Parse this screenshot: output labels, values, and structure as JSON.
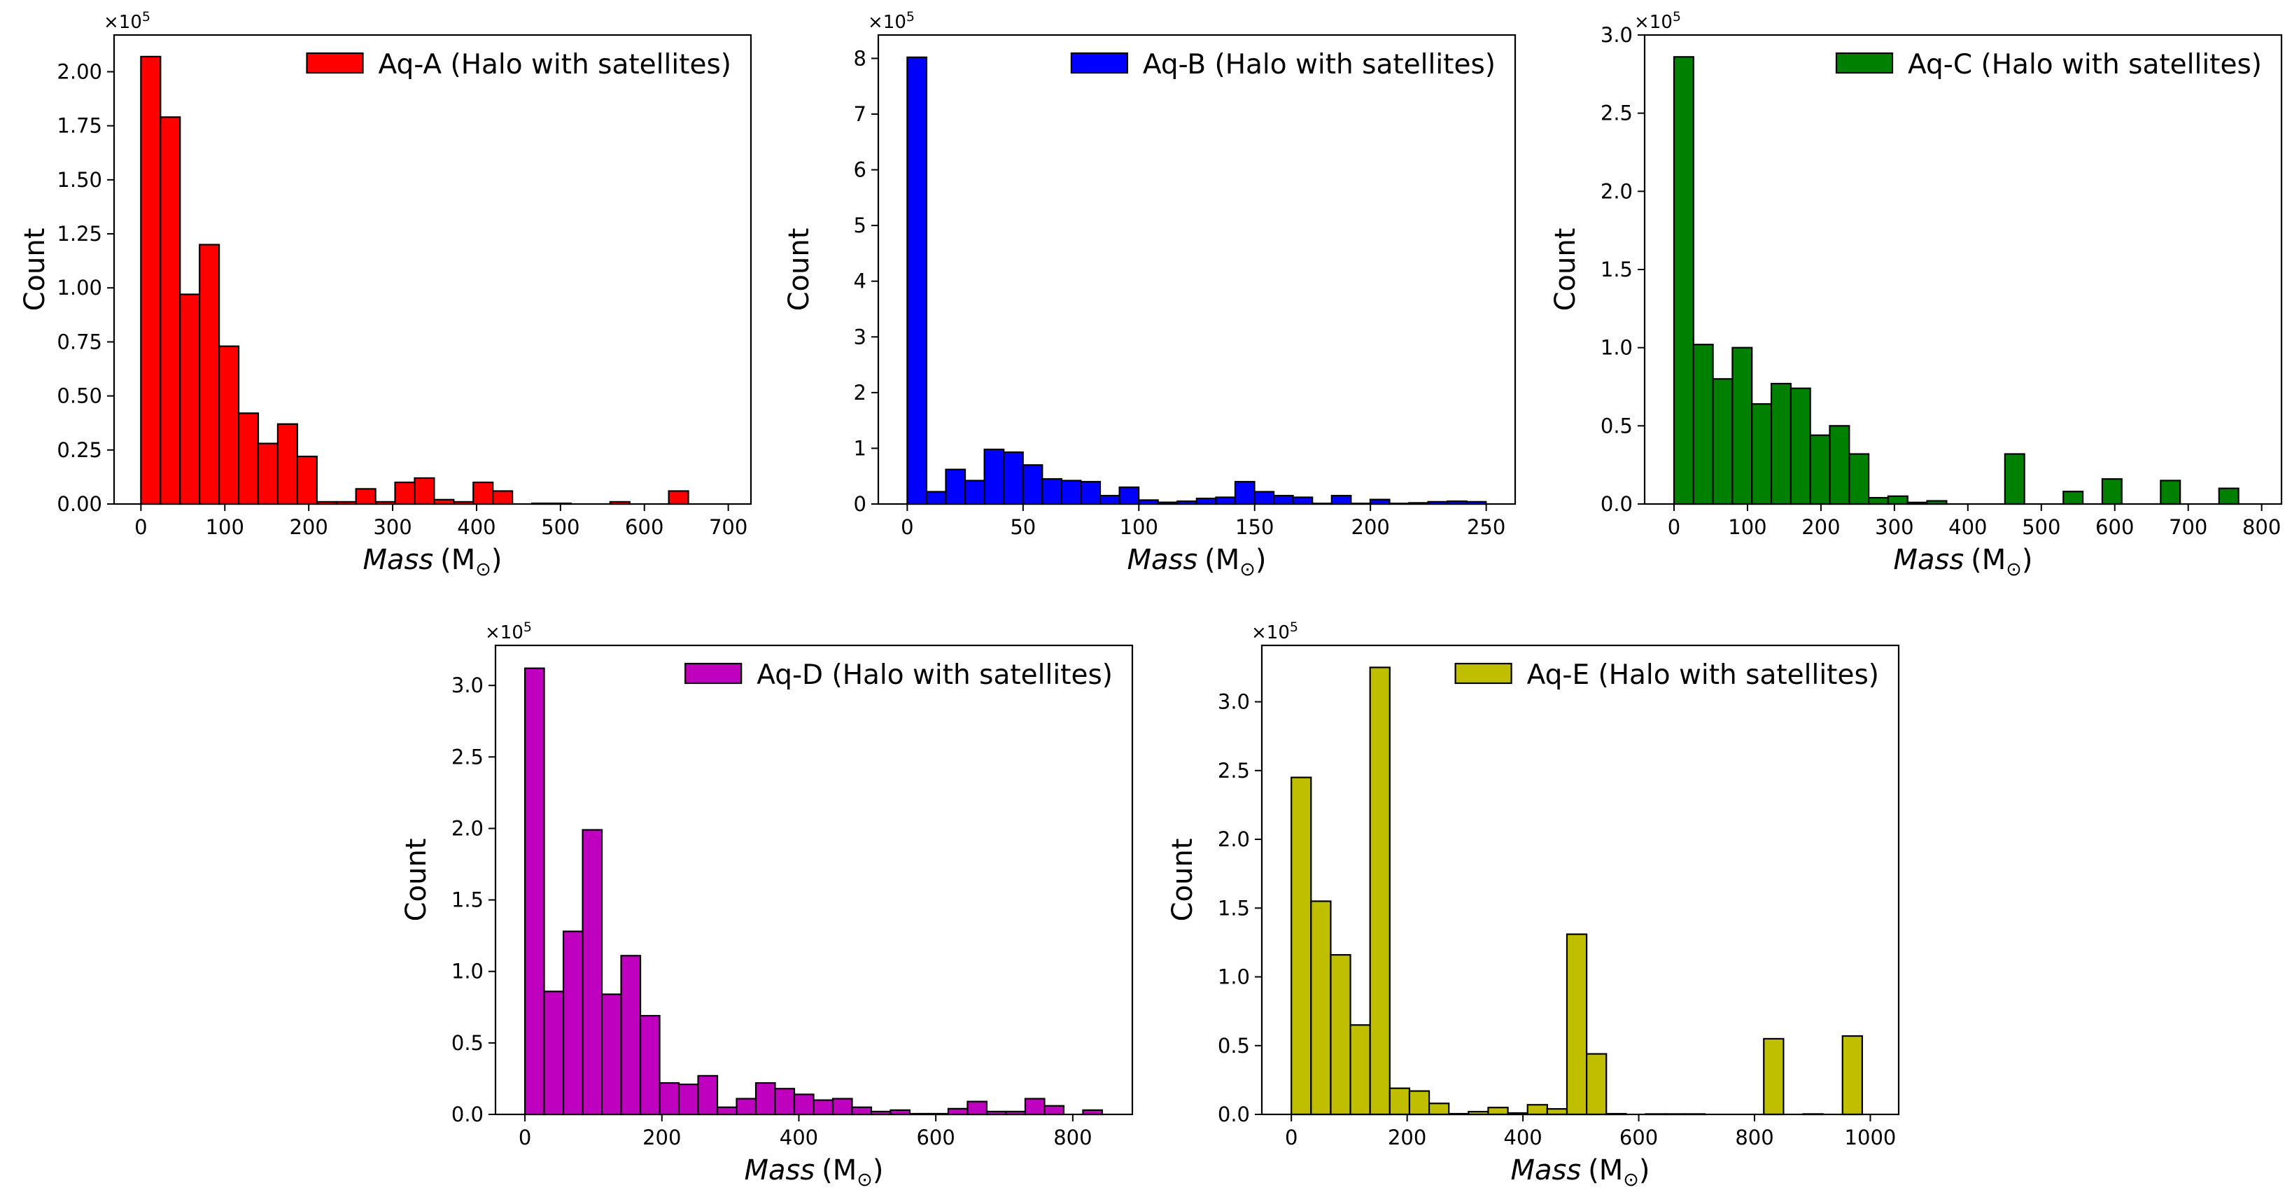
{
  "chart_data": [
    {
      "type": "bar",
      "panel": "Aq-A",
      "title": "",
      "legend": "Aq-A (Halo with satellites)",
      "legend_position": "top-right",
      "color": "#ff0000",
      "xlabel_base": "Mass",
      "xlabel_unit": "(M",
      "xlabel_sub": "⊙",
      "xlabel_close": ")",
      "ylabel": "Count",
      "offset_label": "×10",
      "offset_exp": "5",
      "xlim": [
        -32,
        727
      ],
      "ylim": [
        0,
        2.17
      ],
      "xticks": [
        0,
        100,
        200,
        300,
        400,
        500,
        600,
        700
      ],
      "xtick_labels": [
        "0",
        "100",
        "200",
        "300",
        "400",
        "500",
        "600",
        "700"
      ],
      "yticks": [
        0,
        0.25,
        0.5,
        0.75,
        1.0,
        1.25,
        1.5,
        1.75,
        2.0
      ],
      "ytick_labels": [
        "0.00",
        "0.25",
        "0.50",
        "0.75",
        "1.00",
        "1.25",
        "1.50",
        "1.75",
        "2.00"
      ],
      "bin_start": 0,
      "bin_width": 23.3,
      "values": [
        2.07,
        1.79,
        0.97,
        1.2,
        0.73,
        0.42,
        0.28,
        0.37,
        0.22,
        0.01,
        0.01,
        0.07,
        0.01,
        0.1,
        0.12,
        0.02,
        0.01,
        0.1,
        0.06,
        0.0,
        0.003,
        0.003,
        0.0,
        0.0,
        0.01,
        0.0,
        0.0,
        0.06,
        0.0,
        0.0
      ]
    },
    {
      "type": "bar",
      "panel": "Aq-B",
      "title": "",
      "legend": "Aq-B (Halo with satellites)",
      "legend_position": "top-right",
      "color": "#0000ff",
      "xlabel_base": "Mass",
      "xlabel_unit": "(M",
      "xlabel_sub": "⊙",
      "xlabel_close": ")",
      "ylabel": "Count",
      "offset_label": "×10",
      "offset_exp": "5",
      "xlim": [
        -12.5,
        262.5
      ],
      "ylim": [
        0,
        8.42
      ],
      "xticks": [
        0,
        50,
        100,
        150,
        200,
        250
      ],
      "xtick_labels": [
        "0",
        "50",
        "100",
        "150",
        "200",
        "250"
      ],
      "yticks": [
        0,
        1,
        2,
        3,
        4,
        5,
        6,
        7,
        8
      ],
      "ytick_labels": [
        "0",
        "1",
        "2",
        "3",
        "4",
        "5",
        "6",
        "7",
        "8"
      ],
      "bin_start": 0,
      "bin_width": 8.33,
      "values": [
        8.02,
        0.22,
        0.62,
        0.42,
        0.98,
        0.93,
        0.7,
        0.45,
        0.42,
        0.4,
        0.15,
        0.3,
        0.07,
        0.03,
        0.05,
        0.1,
        0.12,
        0.4,
        0.22,
        0.15,
        0.12,
        0.01,
        0.15,
        0.01,
        0.08,
        0.01,
        0.02,
        0.04,
        0.05,
        0.04
      ]
    },
    {
      "type": "bar",
      "panel": "Aq-C",
      "title": "",
      "legend": "Aq-C (Halo with satellites)",
      "legend_position": "top-right",
      "color": "#008000",
      "xlabel_base": "Mass",
      "xlabel_unit": "(M",
      "xlabel_sub": "⊙",
      "xlabel_close": ")",
      "ylabel": "Count",
      "offset_label": "×10",
      "offset_exp": "5",
      "xlim": [
        -40,
        827
      ],
      "ylim": [
        0,
        3.0
      ],
      "xticks": [
        0,
        100,
        200,
        300,
        400,
        500,
        600,
        700,
        800
      ],
      "xtick_labels": [
        "0",
        "100",
        "200",
        "300",
        "400",
        "500",
        "600",
        "700",
        "800"
      ],
      "yticks": [
        0,
        0.5,
        1.0,
        1.5,
        2.0,
        2.5,
        3.0
      ],
      "ytick_labels": [
        "0.0",
        "0.5",
        "1.0",
        "1.5",
        "2.0",
        "2.5",
        "3.0"
      ],
      "bin_start": 0,
      "bin_width": 26.5,
      "values": [
        2.86,
        1.02,
        0.8,
        1.0,
        0.64,
        0.77,
        0.74,
        0.44,
        0.5,
        0.32,
        0.04,
        0.05,
        0.01,
        0.02,
        0.0,
        0.0,
        0.0,
        0.32,
        0.0,
        0.0,
        0.08,
        0.0,
        0.16,
        0.0,
        0.0,
        0.15,
        0.0,
        0.0,
        0.1,
        0.0
      ]
    },
    {
      "type": "bar",
      "panel": "Aq-D",
      "title": "",
      "legend": "Aq-D (Halo with satellites)",
      "legend_position": "top-right",
      "color": "#bf00bf",
      "xlabel_base": "Mass",
      "xlabel_unit": "(M",
      "xlabel_sub": "⊙",
      "xlabel_close": ")",
      "ylabel": "Count",
      "offset_label": "×10",
      "offset_exp": "5",
      "xlim": [
        -43,
        887
      ],
      "ylim": [
        0,
        3.28
      ],
      "xticks": [
        0,
        200,
        400,
        600,
        800
      ],
      "xtick_labels": [
        "0",
        "200",
        "400",
        "600",
        "800"
      ],
      "yticks": [
        0,
        0.5,
        1.0,
        1.5,
        2.0,
        2.5,
        3.0
      ],
      "ytick_labels": [
        "0.0",
        "0.5",
        "1.0",
        "1.5",
        "2.0",
        "2.5",
        "3.0"
      ],
      "bin_start": 0,
      "bin_width": 28.1,
      "values": [
        3.12,
        0.86,
        1.28,
        1.99,
        0.84,
        1.11,
        0.69,
        0.22,
        0.21,
        0.27,
        0.05,
        0.11,
        0.22,
        0.18,
        0.14,
        0.1,
        0.11,
        0.05,
        0.02,
        0.03,
        0.005,
        0.005,
        0.04,
        0.09,
        0.02,
        0.02,
        0.11,
        0.06,
        0.0,
        0.03
      ]
    },
    {
      "type": "bar",
      "panel": "Aq-E",
      "title": "",
      "legend": "Aq-E (Halo with satellites)",
      "legend_position": "top-right",
      "color": "#bfbf00",
      "xlabel_base": "Mass",
      "xlabel_unit": "(M",
      "xlabel_sub": "⊙",
      "xlabel_close": ")",
      "ylabel": "Count",
      "offset_label": "×10",
      "offset_exp": "5",
      "xlim": [
        -51,
        1049
      ],
      "ylim": [
        0,
        3.41
      ],
      "xticks": [
        0,
        200,
        400,
        600,
        800,
        1000
      ],
      "xtick_labels": [
        "0",
        "200",
        "400",
        "600",
        "800",
        "1000"
      ],
      "yticks": [
        0,
        0.5,
        1.0,
        1.5,
        2.0,
        2.5,
        3.0
      ],
      "ytick_labels": [
        "0.0",
        "0.5",
        "1.0",
        "1.5",
        "2.0",
        "2.5",
        "3.0"
      ],
      "bin_start": 0,
      "bin_width": 34,
      "values": [
        2.45,
        1.55,
        1.16,
        0.65,
        3.25,
        0.19,
        0.17,
        0.08,
        0.005,
        0.02,
        0.05,
        0.01,
        0.07,
        0.04,
        1.31,
        0.44,
        0.005,
        0.0,
        0.003,
        0.003,
        0.003,
        0.0,
        0.0,
        0.0,
        0.55,
        0.0,
        0.003,
        0.0,
        0.57,
        0.0
      ]
    }
  ]
}
